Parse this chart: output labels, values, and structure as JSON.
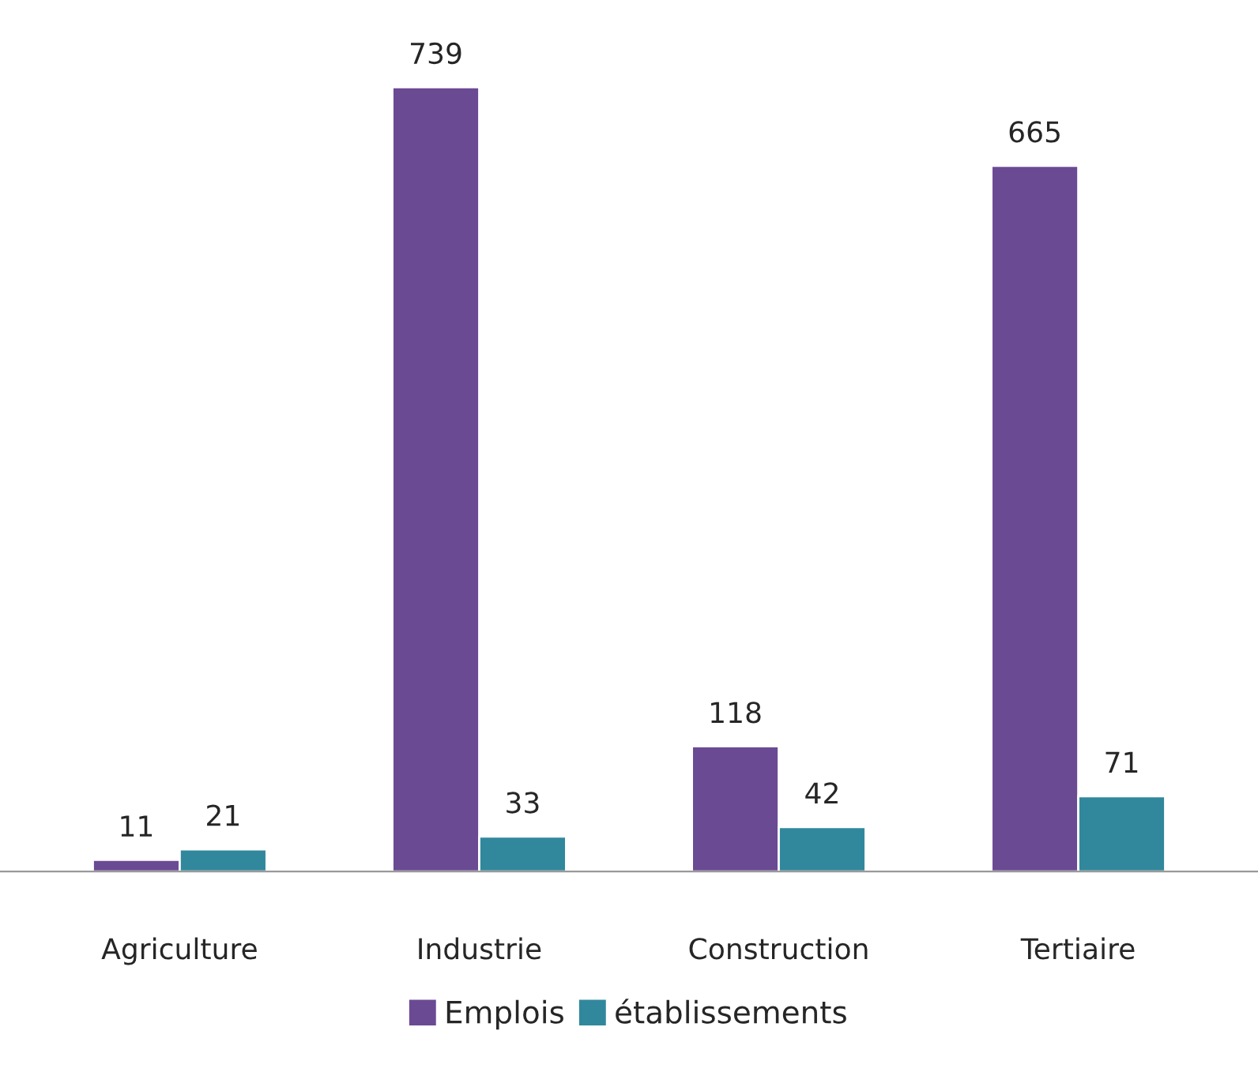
{
  "chart_data": {
    "type": "bar",
    "categories": [
      "Agriculture",
      "Industrie",
      "Construction",
      "Tertiaire"
    ],
    "series": [
      {
        "name": "Emplois",
        "color": "#6b4a94",
        "values": [
          11,
          739,
          118,
          665
        ]
      },
      {
        "name": "établissements",
        "color": "#31889c",
        "values": [
          21,
          33,
          42,
          71
        ]
      }
    ],
    "data_labels": true,
    "legend": "bottom",
    "grid": false
  }
}
